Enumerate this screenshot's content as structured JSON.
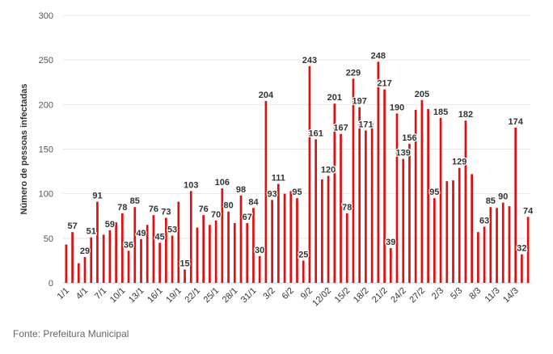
{
  "chart_data": {
    "type": "bar",
    "ylabel": "Número de pessoas infectadas",
    "ylim": [
      0,
      300
    ],
    "yticks": [
      0,
      50,
      100,
      150,
      200,
      250,
      300
    ],
    "grid": "horizontal",
    "bar_color": "#dd1111",
    "x_tick_labels": [
      "1/1",
      "4/1",
      "7/1",
      "10/1",
      "13/1",
      "16/1",
      "19/1",
      "22/1",
      "25/1",
      "28/1",
      "31/1",
      "3/2",
      "6/2",
      "9/2",
      "12/02",
      "15/2",
      "18/2",
      "21/2",
      "24/2",
      "27/2",
      "2/3",
      "5/3",
      "8/3",
      "11/3",
      "14/3"
    ],
    "values": [
      43,
      57,
      22,
      29,
      51,
      91,
      54,
      59,
      68,
      78,
      36,
      85,
      49,
      65,
      76,
      45,
      73,
      53,
      91,
      15,
      103,
      62,
      76,
      65,
      70,
      106,
      80,
      67,
      98,
      67,
      84,
      30,
      204,
      93,
      111,
      100,
      103,
      95,
      25,
      243,
      161,
      116,
      120,
      201,
      167,
      78,
      229,
      197,
      171,
      179,
      248,
      217,
      39,
      190,
      139,
      156,
      194,
      205,
      195,
      95,
      185,
      114,
      115,
      129,
      182,
      122,
      57,
      63,
      85,
      84,
      90,
      86,
      174,
      32,
      74
    ],
    "labeled_values": [
      57,
      29,
      51,
      91,
      59,
      78,
      36,
      85,
      49,
      76,
      45,
      73,
      53,
      15,
      103,
      76,
      70,
      106,
      80,
      98,
      67,
      84,
      30,
      204,
      93,
      111,
      95,
      25,
      243,
      161,
      120,
      201,
      167,
      78,
      229,
      197,
      171,
      248,
      217,
      39,
      190,
      139,
      156,
      205,
      95,
      185,
      129,
      182,
      63,
      85,
      90,
      174,
      32,
      74
    ]
  },
  "footer": {
    "source": "Fonte: Prefeitura Municipal"
  }
}
